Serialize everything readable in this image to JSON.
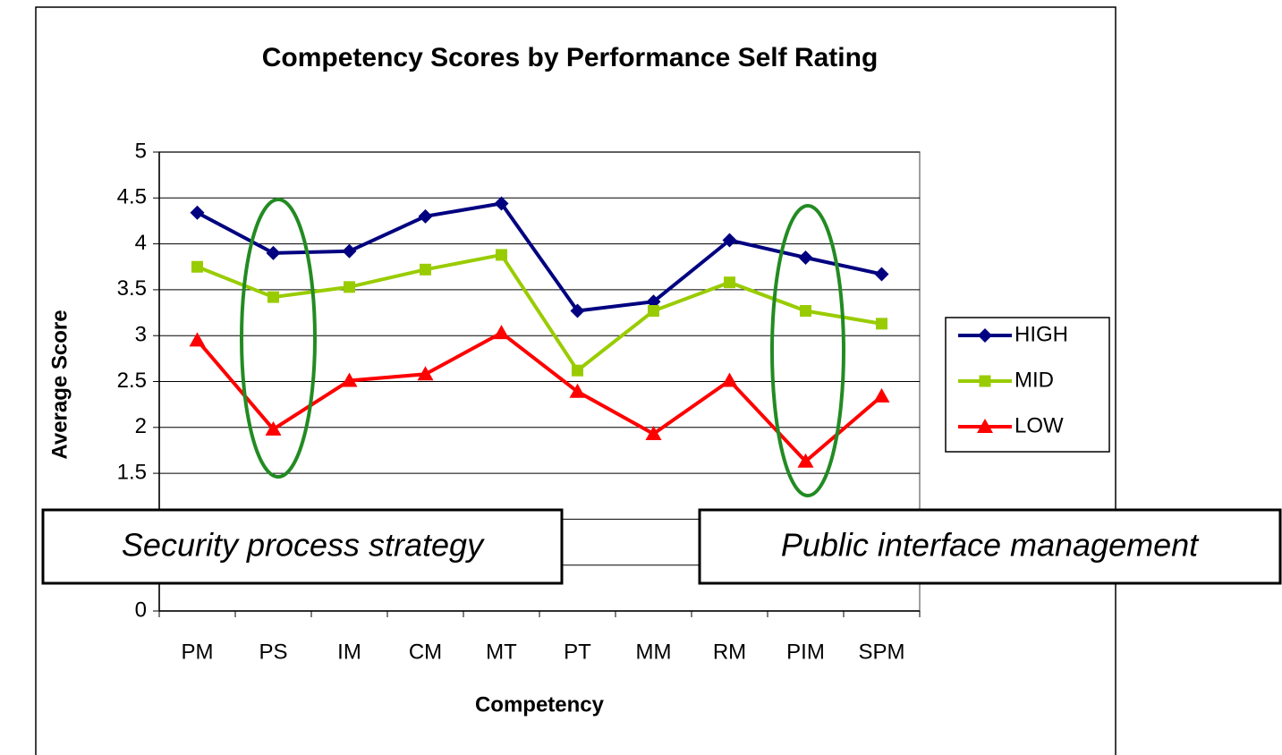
{
  "chart_data": {
    "type": "line",
    "title": "Competency Scores by Performance Self Rating",
    "x_label": "Competency",
    "y_label": "Average Score",
    "categories": [
      "PM",
      "PS",
      "IM",
      "CM",
      "MT",
      "PT",
      "MM",
      "RM",
      "PIM",
      "SPM"
    ],
    "series": [
      {
        "name": "HIGH",
        "color": "#000080",
        "marker": "diamond",
        "values": [
          4.34,
          3.9,
          3.92,
          4.3,
          4.44,
          3.27,
          3.37,
          4.04,
          3.85,
          3.67
        ]
      },
      {
        "name": "MID",
        "color": "#99cc00",
        "marker": "square",
        "values": [
          3.75,
          3.42,
          3.53,
          3.72,
          3.88,
          2.62,
          3.27,
          3.58,
          3.27,
          3.13
        ]
      },
      {
        "name": "LOW",
        "color": "#ff0000",
        "marker": "triangle",
        "values": [
          2.95,
          1.98,
          2.51,
          2.58,
          3.03,
          2.39,
          1.93,
          2.51,
          1.63,
          2.34
        ]
      }
    ],
    "ylim": [
      0,
      5
    ],
    "yticks": [
      0,
      0.5,
      1,
      1.5,
      2,
      2.5,
      3,
      3.5,
      4,
      4.5,
      5
    ],
    "grid": true,
    "legend": "right",
    "annotations": [
      {
        "text": "Security process strategy"
      },
      {
        "text": "Public interface management"
      }
    ]
  }
}
